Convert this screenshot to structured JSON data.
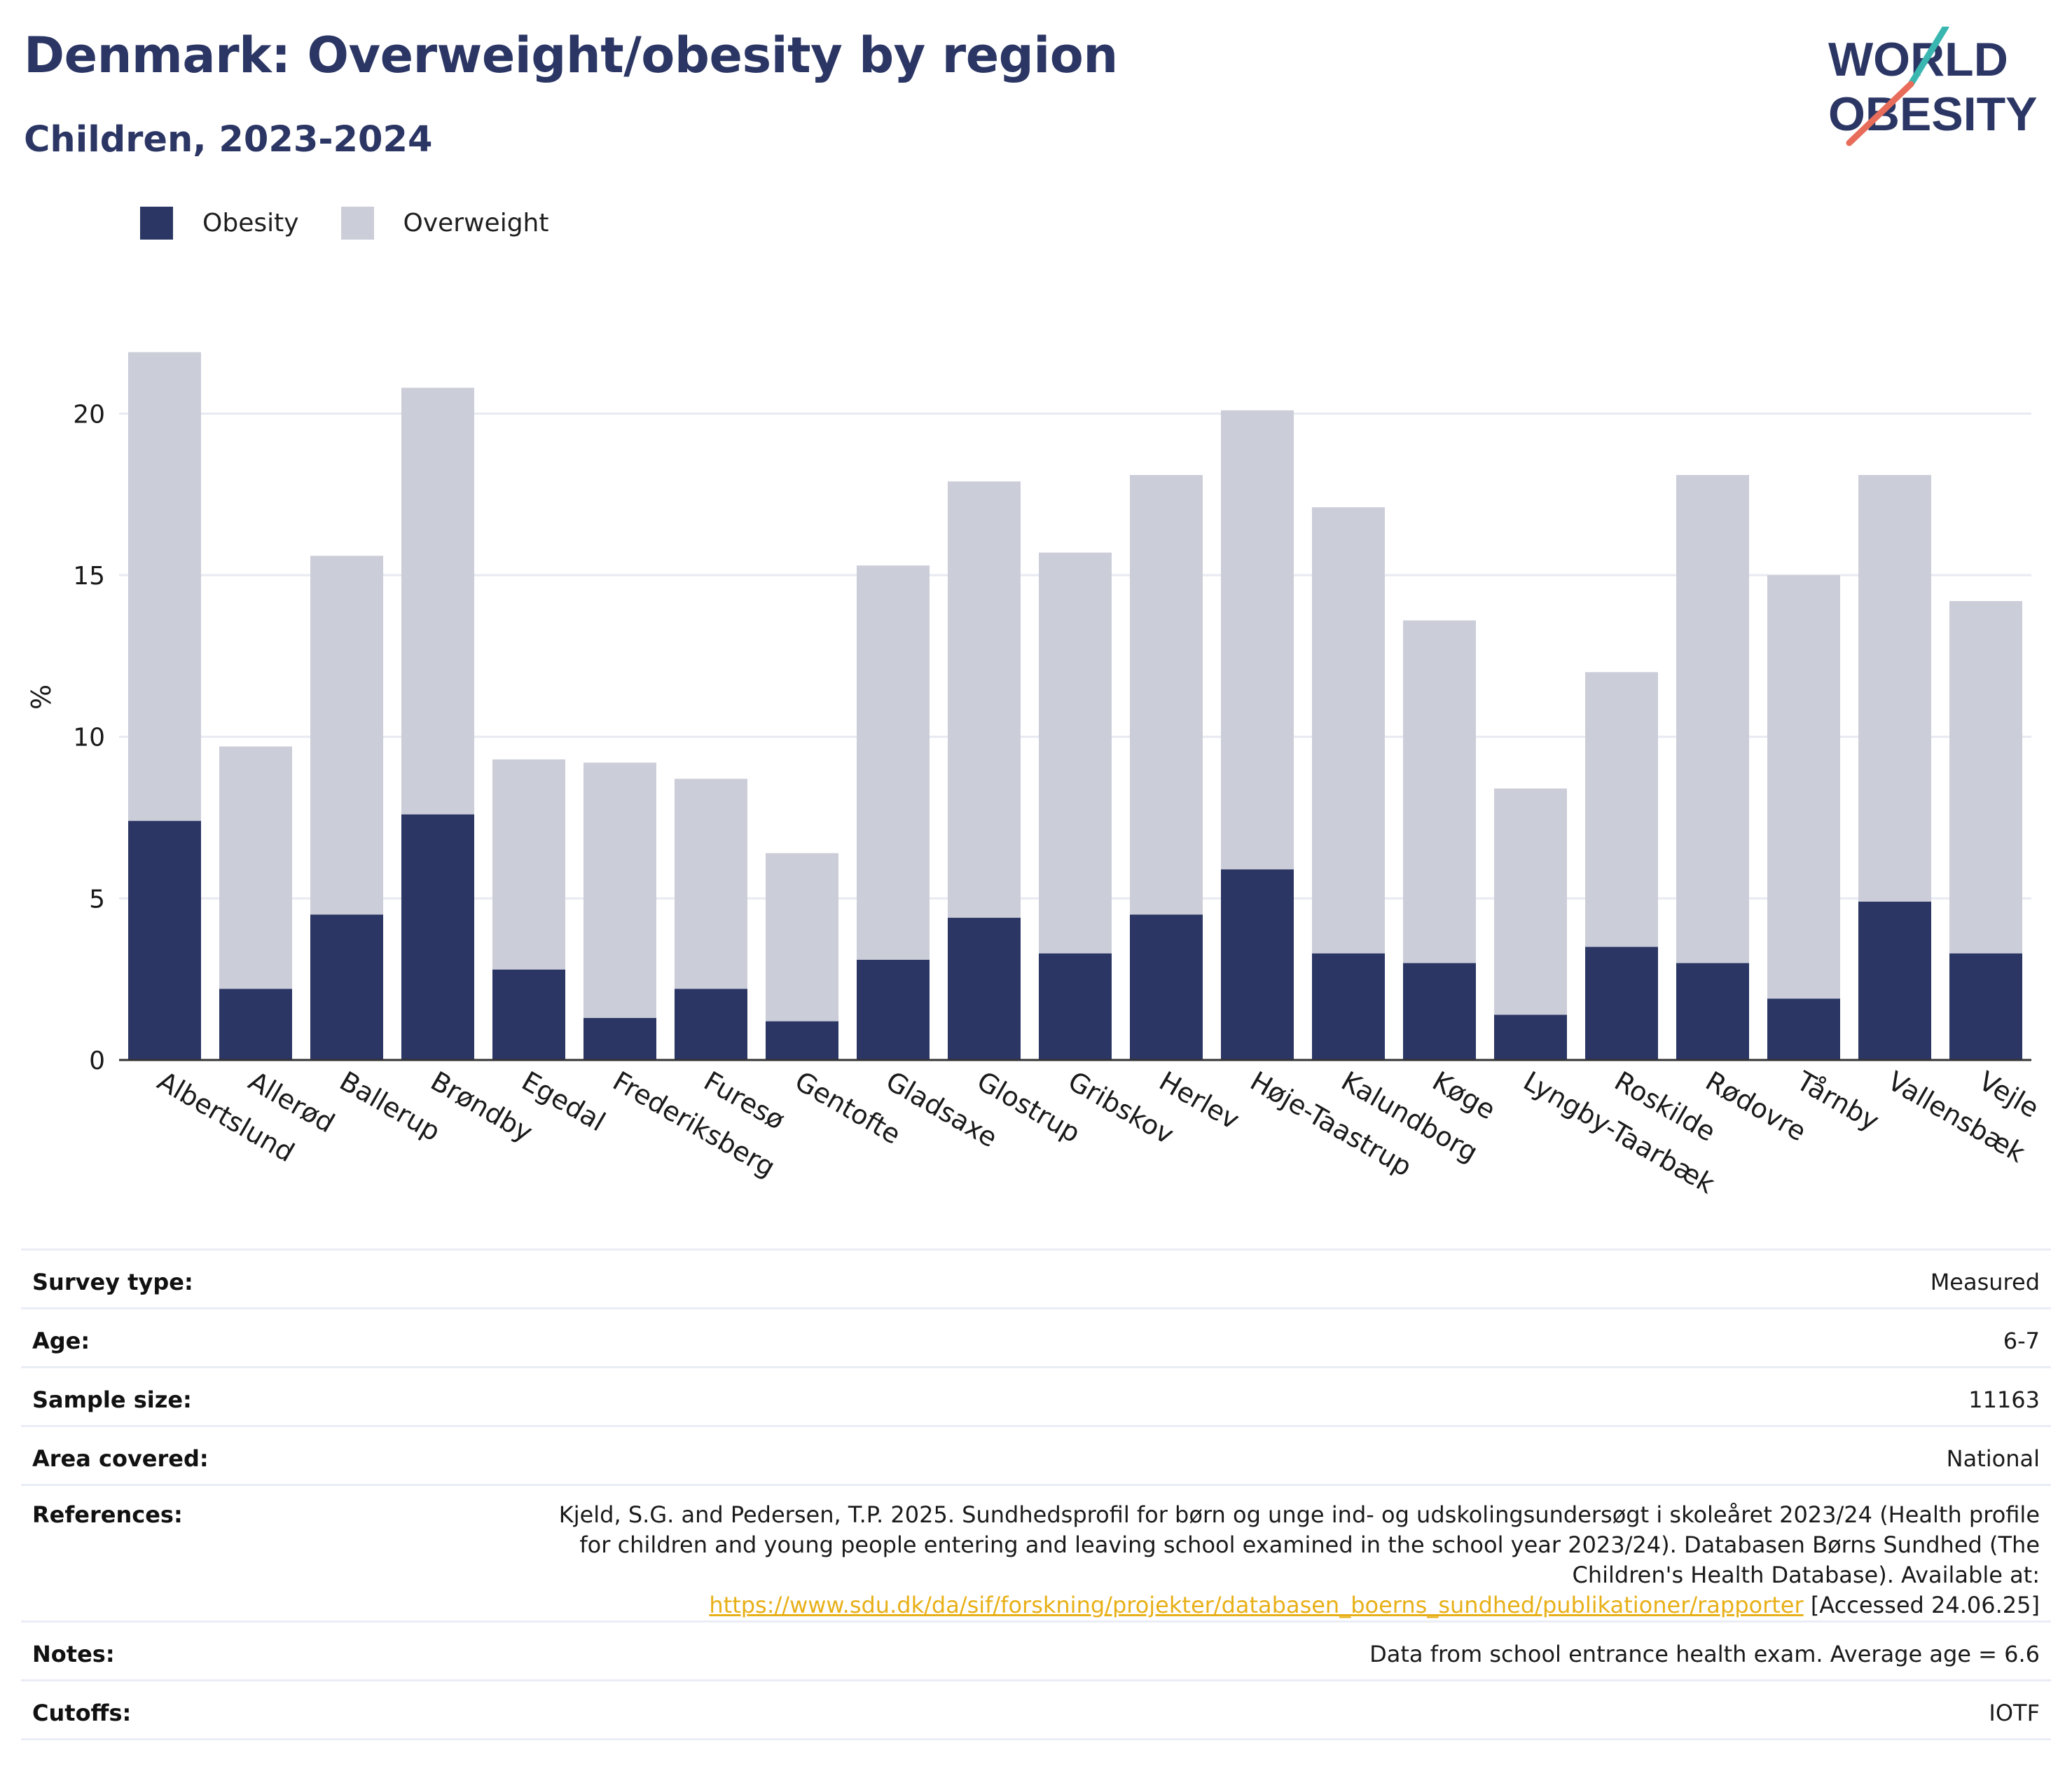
{
  "header": {
    "title": "Denmark: Overweight/obesity by region",
    "subtitle": "Children, 2023-2024",
    "logo_line1": "WORLD",
    "logo_line2": "OBESITY"
  },
  "colors": {
    "obesity": "#2b3664",
    "overweight": "#cbcdd9",
    "title": "#2b3664",
    "link": "#e8b018",
    "logo_slash_top": "#3ab6b0",
    "logo_slash_bottom": "#e86c5a"
  },
  "chart_data": {
    "type": "bar",
    "stacked": true,
    "categories": [
      "Albertslund",
      "Allerød",
      "Ballerup",
      "Brøndby",
      "Egedal",
      "Frederiksberg",
      "Furesø",
      "Gentofte",
      "Gladsaxe",
      "Glostrup",
      "Gribskov",
      "Herlev",
      "Høje-Taastrup",
      "Kalundborg",
      "Køge",
      "Lyngby-Taarbæk",
      "Roskilde",
      "Rødovre",
      "Tårnby",
      "Vallensbæk",
      "Vejle"
    ],
    "series": [
      {
        "name": "Obesity",
        "values": [
          7.4,
          2.2,
          4.5,
          7.6,
          2.8,
          1.3,
          2.2,
          1.2,
          3.1,
          4.4,
          3.3,
          4.5,
          5.9,
          3.3,
          3.0,
          1.4,
          3.5,
          3.0,
          1.9,
          4.9,
          3.3
        ]
      },
      {
        "name": "Overweight",
        "values": [
          14.5,
          7.5,
          11.1,
          13.2,
          6.5,
          7.9,
          6.5,
          5.2,
          12.2,
          13.5,
          12.4,
          13.6,
          14.2,
          13.8,
          10.6,
          7.0,
          8.5,
          15.1,
          13.1,
          13.2,
          10.9
        ]
      }
    ],
    "ylabel": "%",
    "xlabel": "",
    "ylim": [
      0,
      22.5
    ],
    "yticks": [
      0,
      5,
      10,
      15,
      20
    ],
    "grid": true,
    "legend": "top-left"
  },
  "table": [
    {
      "key": "Survey type:",
      "value": "Measured"
    },
    {
      "key": "Age:",
      "value": "6-7"
    },
    {
      "key": "Sample size:",
      "value": "11163"
    },
    {
      "key": "Area covered:",
      "value": "National"
    },
    {
      "key": "References:",
      "value_line1": "Kjeld, S.G. and Pedersen, T.P. 2025. Sundhedsprofil for børn og unge ind- og udskolingsundersøgt i skoleåret 2023/24 (Health profile",
      "value_line2": "for children and young people entering and leaving school examined in the school year 2023/24). Databasen Børns Sundhed (The",
      "value_line3": "Children's Health Database). Available at:",
      "link": "https://www.sdu.dk/da/sif/forskning/projekter/databasen_boerns_sundhed/publikationer/rapporter",
      "accessed": " [Accessed 24.06.25]"
    },
    {
      "key": "Notes:",
      "value": "Data from school entrance health exam. Average age = 6.6"
    },
    {
      "key": "Cutoffs:",
      "value": "IOTF"
    }
  ]
}
